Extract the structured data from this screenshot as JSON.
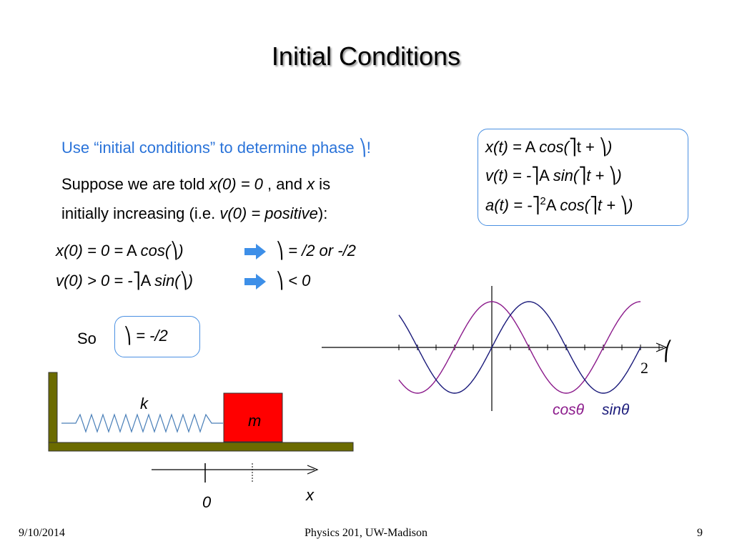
{
  "slide": {
    "title": "Initial Conditions",
    "intro": {
      "text": "Use “initial conditions” to determine phase ",
      "symbol": "⎞",
      "bang": "!"
    },
    "suppose": {
      "line1_a": "Suppose we are told ",
      "line1_b": "x(0) = 0",
      "line1_c": " , and ",
      "line1_d": "x",
      "line1_e": " is",
      "line2_a": "initially increasing  (i.e. ",
      "line2_b": "v(0) = positive",
      "line2_c": "):"
    },
    "equations_box": {
      "x_a": "x(t) =",
      "x_b": " A ",
      "x_c": "cos(",
      "x_d": "⎤",
      "x_e": "t + ",
      "x_f": "⎞",
      "x_g": ")",
      "v_a": "v(t) = -",
      "v_b": "⎤",
      "v_c": "A ",
      "v_d": "sin(",
      "v_e": "⎤",
      "v_f": "t + ",
      "v_g": "⎞",
      "v_h": ")",
      "a_a": "a(t) = -",
      "a_b": "⎤",
      "a_c": "2",
      "a_d": "A ",
      "a_e": "cos(",
      "a_f": "⎤",
      "a_g": "t + ",
      "a_h": "⎞",
      "a_i": ")"
    },
    "condition1": {
      "left_a": "x(0) = 0 =",
      "left_b": " A ",
      "left_c": "cos(",
      "left_d": "⎞",
      "left_e": ")",
      "right_a": "⎞",
      "right_b": " = ",
      "right_c": "",
      "right_d": "/2 or -",
      "right_e": "",
      "right_f": "/2"
    },
    "condition2": {
      "left_a": "v(0) > 0 = -",
      "left_b": "⎤",
      "left_c": "A ",
      "left_d": "sin(",
      "left_e": "⎞",
      "left_f": ")",
      "right_a": "⎞",
      "right_b": " < 0"
    },
    "so": {
      "label": "So",
      "a": "⎞",
      "b": " = -",
      "c": "",
      "d": "/2"
    },
    "graph": {
      "pi_label": "",
      "two_pi_label": "2",
      "theta_symbol": "⎛",
      "cos_label": "cosθ",
      "sin_label": "sinθ",
      "cos_color": "#8b1a8b",
      "sin_color": "#1a1a7a"
    },
    "spring": {
      "k_label": "k",
      "m_label": "m",
      "zero_label": "0",
      "x_label": "x",
      "wall_color": "#6b6b00",
      "mass_color": "#ff0000"
    }
  },
  "footer": {
    "date": "9/10/2014",
    "center": "Physics 201, UW-Madison",
    "page": "9"
  }
}
